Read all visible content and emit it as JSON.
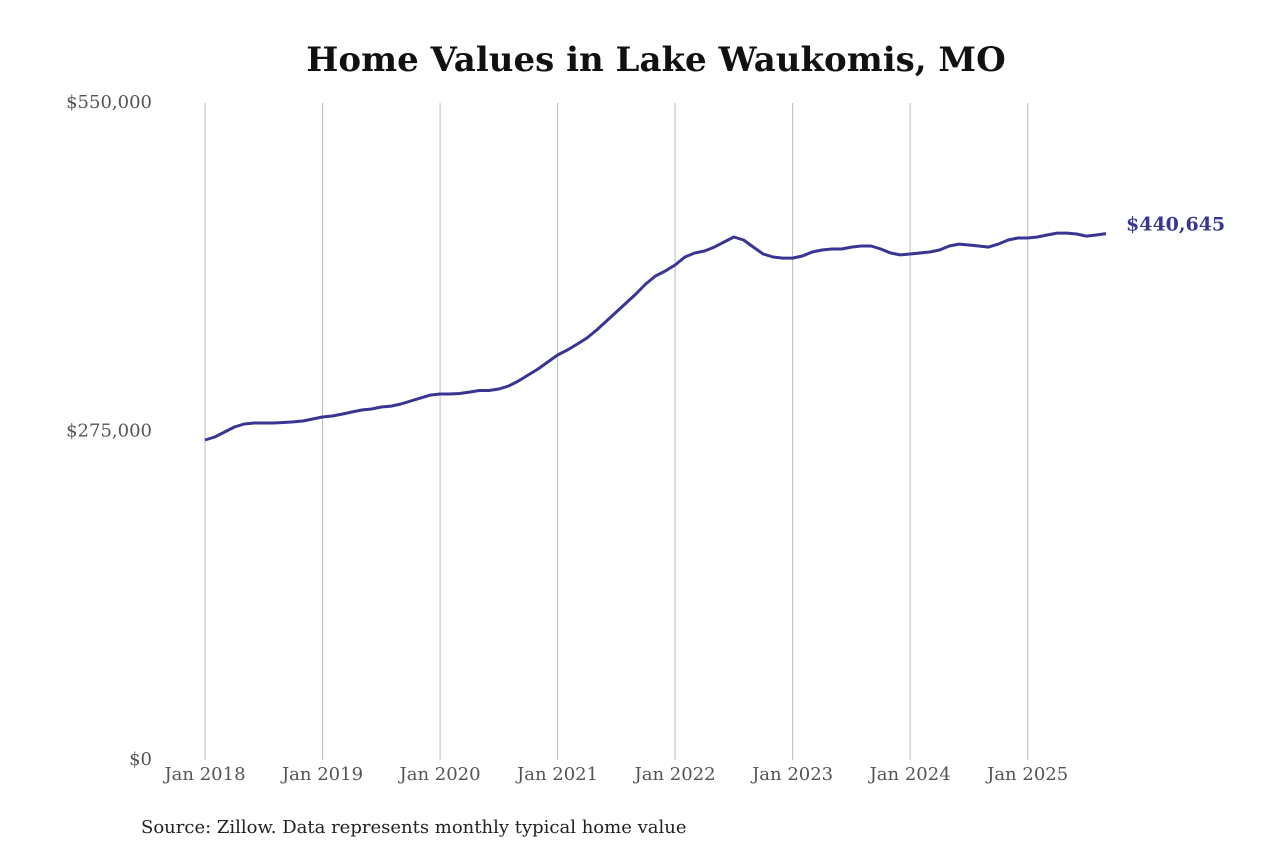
{
  "chart_data": {
    "type": "line",
    "title": "Home Values in Lake Waukomis, MO",
    "source": "Source: Zillow. Data represents monthly typical home value",
    "color": "#3a3593",
    "grid": true,
    "x": [
      "2018-01",
      "2018-02",
      "2018-03",
      "2018-04",
      "2018-05",
      "2018-06",
      "2018-07",
      "2018-08",
      "2018-09",
      "2018-10",
      "2018-11",
      "2018-12",
      "2019-01",
      "2019-02",
      "2019-03",
      "2019-04",
      "2019-05",
      "2019-06",
      "2019-07",
      "2019-08",
      "2019-09",
      "2019-10",
      "2019-11",
      "2019-12",
      "2020-01",
      "2020-02",
      "2020-03",
      "2020-04",
      "2020-05",
      "2020-06",
      "2020-07",
      "2020-08",
      "2020-09",
      "2020-10",
      "2020-11",
      "2020-12",
      "2021-01",
      "2021-02",
      "2021-03",
      "2021-04",
      "2021-05",
      "2021-06",
      "2021-07",
      "2021-08",
      "2021-09",
      "2021-10",
      "2021-11",
      "2021-12",
      "2022-01",
      "2022-02",
      "2022-03",
      "2022-04",
      "2022-05",
      "2022-06",
      "2022-07",
      "2022-08",
      "2022-09",
      "2022-10",
      "2022-11",
      "2022-12",
      "2023-01",
      "2023-02",
      "2023-03",
      "2023-04",
      "2023-05",
      "2023-06",
      "2023-07",
      "2023-08",
      "2023-09",
      "2023-10",
      "2023-11",
      "2023-12",
      "2024-01",
      "2024-02",
      "2024-03",
      "2024-04",
      "2024-05",
      "2024-06",
      "2024-07",
      "2024-08",
      "2024-09",
      "2024-10",
      "2024-11",
      "2024-12",
      "2025-01",
      "2025-02",
      "2025-03",
      "2025-04",
      "2025-05",
      "2025-06",
      "2025-07",
      "2025-08",
      "2025-09"
    ],
    "values": [
      267900,
      270400,
      274600,
      278800,
      281300,
      282100,
      282100,
      282100,
      282500,
      283000,
      283800,
      285500,
      287100,
      288000,
      289600,
      291300,
      293000,
      293800,
      295500,
      296300,
      298000,
      300500,
      303000,
      305500,
      306400,
      306400,
      306800,
      308000,
      309300,
      309300,
      310600,
      313100,
      317300,
      322300,
      327300,
      333200,
      339000,
      343200,
      348200,
      353300,
      360000,
      367500,
      375000,
      382600,
      390100,
      398500,
      405200,
      409400,
      414400,
      421100,
      424400,
      426100,
      429400,
      433600,
      437800,
      435300,
      429400,
      423600,
      421100,
      420200,
      420200,
      421900,
      425300,
      426900,
      427800,
      427800,
      429400,
      430300,
      430300,
      427800,
      424400,
      422800,
      423600,
      424400,
      425300,
      426900,
      430300,
      431900,
      431100,
      430300,
      429400,
      431900,
      435300,
      437000,
      437000,
      437800,
      439500,
      441100,
      441100,
      440300,
      438600,
      439500,
      440645
    ],
    "value_labels": [
      null,
      null,
      null,
      null,
      null,
      null,
      null,
      null,
      null,
      null,
      null,
      null,
      null,
      null,
      null,
      null,
      null,
      null,
      null,
      null,
      null,
      null,
      null,
      null,
      null,
      null,
      null,
      null,
      null,
      null,
      null,
      null,
      null,
      null,
      null,
      null,
      null,
      null,
      null,
      null,
      null,
      null,
      null,
      null,
      null,
      null,
      null,
      null,
      null,
      null,
      null,
      null,
      null,
      null,
      null,
      null,
      null,
      null,
      null,
      null,
      null,
      null,
      null,
      null,
      null,
      null,
      null,
      null,
      null,
      null,
      null,
      null,
      null,
      null,
      null,
      null,
      null,
      null,
      null,
      null,
      null,
      null,
      null,
      null,
      null,
      null,
      null,
      null,
      null,
      null,
      null,
      null,
      "$440,645"
    ],
    "xlim": [
      "2018-01",
      "2025-09"
    ],
    "xticks": [
      {
        "value": "2018-01",
        "label": "Jan 2018"
      },
      {
        "value": "2019-01",
        "label": "Jan 2019"
      },
      {
        "value": "2020-01",
        "label": "Jan 2020"
      },
      {
        "value": "2021-01",
        "label": "Jan 2021"
      },
      {
        "value": "2022-01",
        "label": "Jan 2022"
      },
      {
        "value": "2023-01",
        "label": "Jan 2023"
      },
      {
        "value": "2024-01",
        "label": "Jan 2024"
      },
      {
        "value": "2025-01",
        "label": "Jan 2025"
      }
    ],
    "ylim": [
      0,
      550000
    ],
    "yticks": [
      {
        "value": 0,
        "label": "$0"
      },
      {
        "value": 275000,
        "label": "$275,000"
      },
      {
        "value": 550000,
        "label": "$550,000"
      }
    ]
  }
}
